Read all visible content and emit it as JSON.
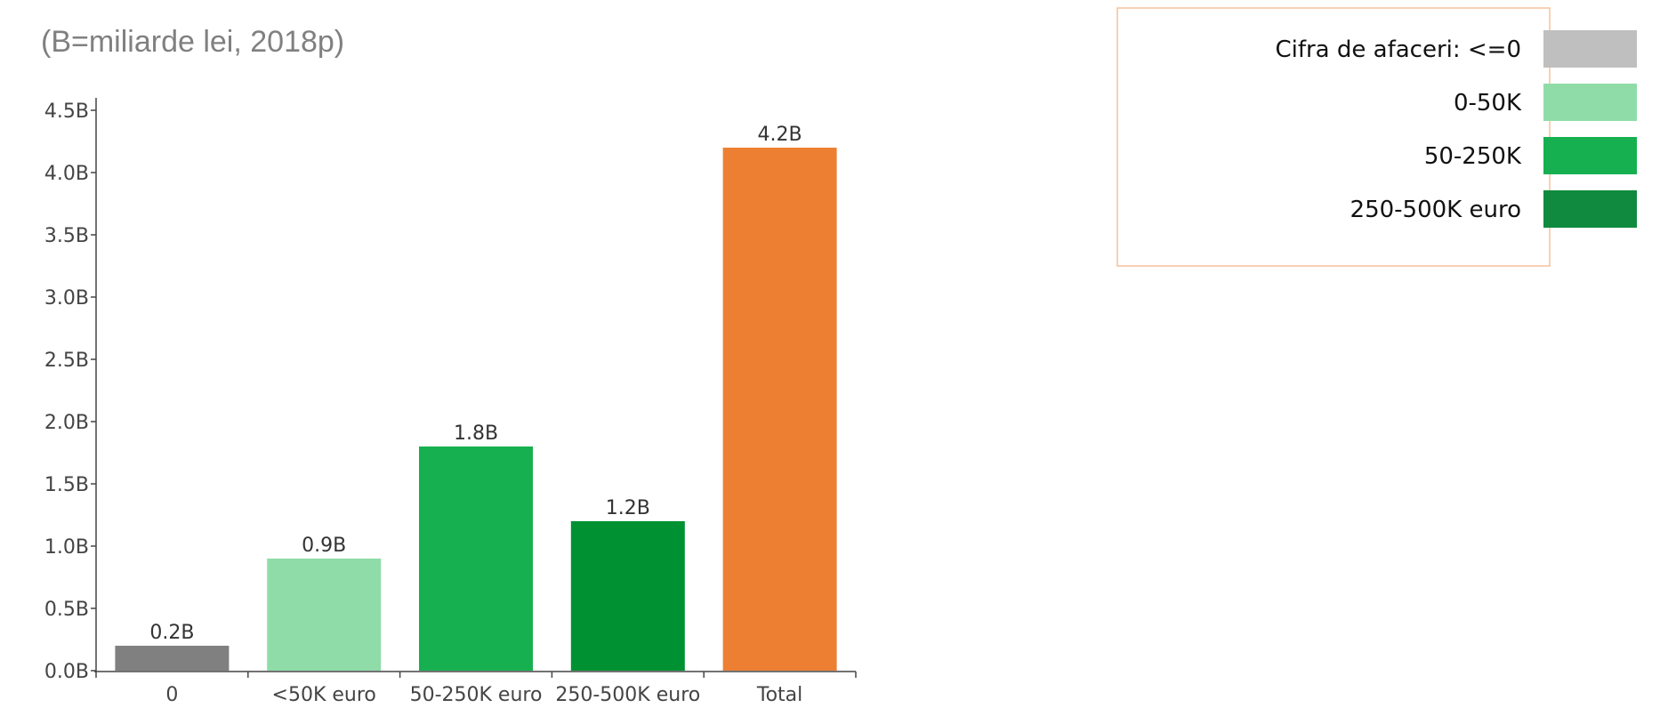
{
  "chart_data": {
    "type": "bar",
    "title": "",
    "subtitle": "(B=miliarde lei, 2018p)",
    "xlabel": "",
    "ylabel": "",
    "categories": [
      "0",
      "<50K euro",
      "50-250K euro",
      "250-500K euro",
      "Total"
    ],
    "values": [
      0.2,
      0.9,
      1.8,
      1.2,
      4.2
    ],
    "data_labels": [
      "0.2B",
      "0.9B",
      "1.8B",
      "1.2B",
      "4.2B"
    ],
    "bar_colors": [
      "#808080",
      "#8fdca9",
      "#17b050",
      "#009132",
      "#ed7f32"
    ],
    "ylim": [
      0,
      4.6
    ],
    "yticks": [
      0,
      0.5,
      1,
      1.5,
      2,
      2.5,
      3,
      3.5,
      4,
      4.5
    ],
    "ytick_labels": [
      "0.0B",
      "0.5B",
      "1.0B",
      "1.5B",
      "2.0B",
      "2.5B",
      "3.0B",
      "3.5B",
      "4.0B",
      "4.5B"
    ],
    "grid": false,
    "legend": {
      "placement": "top-right",
      "border_color": "#f5c29c",
      "items": [
        {
          "label": "Cifra de afaceri: <=0",
          "color": "#bfbfbf"
        },
        {
          "label": "0-50K",
          "color": "#8fdca9"
        },
        {
          "label": "50-250K",
          "color": "#17b050"
        },
        {
          "label": "250-500K euro",
          "color": "#0f8a3e"
        }
      ]
    }
  }
}
